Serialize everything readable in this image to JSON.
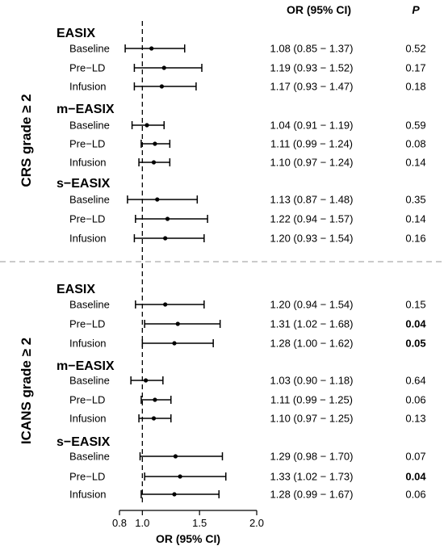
{
  "chart_data": {
    "type": "forest",
    "column_headers": {
      "or": "OR (95% CI)",
      "p": "P"
    },
    "xlabel": "OR (95% CI)",
    "xlim": [
      0.8,
      2.0
    ],
    "xticks": [
      "0.8",
      "1.0",
      "1.5",
      "2.0"
    ],
    "reference_line": 1.0,
    "sections": [
      {
        "label": "CRS grade ≥ 2",
        "groups": [
          {
            "name": "EASIX",
            "rows": [
              {
                "label": "Baseline",
                "or": 1.08,
                "lo": 0.85,
                "hi": 1.37,
                "ci_text": "1.08 (0.85 − 1.37)",
                "p": "0.52",
                "p_bold": false
              },
              {
                "label": "Pre−LD",
                "or": 1.19,
                "lo": 0.93,
                "hi": 1.52,
                "ci_text": "1.19 (0.93 − 1.52)",
                "p": "0.17",
                "p_bold": false
              },
              {
                "label": "Infusion",
                "or": 1.17,
                "lo": 0.93,
                "hi": 1.47,
                "ci_text": "1.17 (0.93 − 1.47)",
                "p": "0.18",
                "p_bold": false
              }
            ]
          },
          {
            "name": "m−EASIX",
            "rows": [
              {
                "label": "Baseline",
                "or": 1.04,
                "lo": 0.91,
                "hi": 1.19,
                "ci_text": "1.04 (0.91 − 1.19)",
                "p": "0.59",
                "p_bold": false
              },
              {
                "label": "Pre−LD",
                "or": 1.11,
                "lo": 0.99,
                "hi": 1.24,
                "ci_text": "1.11 (0.99 − 1.24)",
                "p": "0.08",
                "p_bold": false
              },
              {
                "label": "Infusion",
                "or": 1.1,
                "lo": 0.97,
                "hi": 1.24,
                "ci_text": "1.10 (0.97 − 1.24)",
                "p": "0.14",
                "p_bold": false
              }
            ]
          },
          {
            "name": "s−EASIX",
            "rows": [
              {
                "label": "Baseline",
                "or": 1.13,
                "lo": 0.87,
                "hi": 1.48,
                "ci_text": "1.13 (0.87 − 1.48)",
                "p": "0.35",
                "p_bold": false
              },
              {
                "label": "Pre−LD",
                "or": 1.22,
                "lo": 0.94,
                "hi": 1.57,
                "ci_text": "1.22 (0.94 − 1.57)",
                "p": "0.14",
                "p_bold": false
              },
              {
                "label": "Infusion",
                "or": 1.2,
                "lo": 0.93,
                "hi": 1.54,
                "ci_text": "1.20 (0.93 − 1.54)",
                "p": "0.16",
                "p_bold": false
              }
            ]
          }
        ]
      },
      {
        "label": "ICANS grade ≥ 2",
        "groups": [
          {
            "name": "EASIX",
            "rows": [
              {
                "label": "Baseline",
                "or": 1.2,
                "lo": 0.94,
                "hi": 1.54,
                "ci_text": "1.20 (0.94 − 1.54)",
                "p": "0.15",
                "p_bold": false
              },
              {
                "label": "Pre−LD",
                "or": 1.31,
                "lo": 1.02,
                "hi": 1.68,
                "ci_text": "1.31 (1.02 − 1.68)",
                "p": "0.04",
                "p_bold": true
              },
              {
                "label": "Infusion",
                "or": 1.28,
                "lo": 1.0,
                "hi": 1.62,
                "ci_text": "1.28 (1.00 − 1.62)",
                "p": "0.05",
                "p_bold": true
              }
            ]
          },
          {
            "name": "m−EASIX",
            "rows": [
              {
                "label": "Baseline",
                "or": 1.03,
                "lo": 0.9,
                "hi": 1.18,
                "ci_text": "1.03 (0.90 − 1.18)",
                "p": "0.64",
                "p_bold": false
              },
              {
                "label": "Pre−LD",
                "or": 1.11,
                "lo": 0.99,
                "hi": 1.25,
                "ci_text": "1.11 (0.99 − 1.25)",
                "p": "0.06",
                "p_bold": false
              },
              {
                "label": "Infusion",
                "or": 1.1,
                "lo": 0.97,
                "hi": 1.25,
                "ci_text": "1.10 (0.97 − 1.25)",
                "p": "0.13",
                "p_bold": false
              }
            ]
          },
          {
            "name": "s−EASIX",
            "rows": [
              {
                "label": "Baseline",
                "or": 1.29,
                "lo": 0.98,
                "hi": 1.7,
                "ci_text": "1.29 (0.98 − 1.70)",
                "p": "0.07",
                "p_bold": false
              },
              {
                "label": "Pre−LD",
                "or": 1.33,
                "lo": 1.02,
                "hi": 1.73,
                "ci_text": "1.33 (1.02 − 1.73)",
                "p": "0.04",
                "p_bold": true
              },
              {
                "label": "Infusion",
                "or": 1.28,
                "lo": 0.99,
                "hi": 1.67,
                "ci_text": "1.28 (0.99 − 1.67)",
                "p": "0.06",
                "p_bold": false
              }
            ]
          }
        ]
      }
    ]
  }
}
